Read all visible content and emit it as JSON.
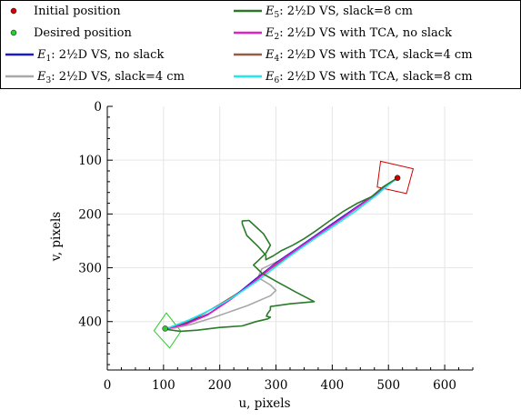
{
  "chart_data": {
    "type": "line",
    "xlabel": "u, pixels",
    "ylabel": "v, pixels",
    "xlim": [
      0,
      650
    ],
    "ylim": [
      0,
      490
    ],
    "y_inverted": true,
    "grid": true,
    "legend_placement": "top, above plot area",
    "xticks": [
      0,
      100,
      200,
      300,
      400,
      500,
      600
    ],
    "yticks": [
      0,
      100,
      200,
      300,
      400
    ],
    "legend": [
      {
        "label": "Initial position",
        "kind": "marker",
        "color": "#d40000"
      },
      {
        "label": "Desired position",
        "kind": "marker",
        "color": "#2ccc2c"
      },
      {
        "label": "E_1: 2½D VS, no slack",
        "sym": "E",
        "sub": "1",
        "rest": ": 2½D VS, no slack",
        "color": "#1a1acc"
      },
      {
        "label": "E_3: 2½D VS, slack=4 cm",
        "sym": "E",
        "sub": "3",
        "rest": ": 2½D VS, slack=4 cm",
        "color": "#a8a8a8"
      },
      {
        "label": "E_5: 2½D VS, slack=8 cm",
        "sym": "E",
        "sub": "5",
        "rest": ": 2½D VS, slack=8 cm",
        "color": "#2a7a2a"
      },
      {
        "label": "E_2: 2½D VS with TCA, no slack",
        "sym": "E",
        "sub": "2",
        "rest": ": 2½D VS with TCA, no slack",
        "color": "#e020c8"
      },
      {
        "label": "E_4: 2½D VS with TCA, slack=4 cm",
        "sym": "E",
        "sub": "4",
        "rest": ": 2½D VS with TCA, slack=4 cm",
        "color": "#9a5a4a"
      },
      {
        "label": "E_6: 2½D VS with TCA, slack=8 cm",
        "sym": "E",
        "sub": "6",
        "rest": ": 2½D VS with TCA, slack=8 cm",
        "color": "#20e8f0"
      }
    ],
    "points": {
      "initial": {
        "name": "Initial position",
        "x": 516,
        "y": 133,
        "color": "#d40000"
      },
      "desired": {
        "name": "Desired position",
        "x": 103,
        "y": 413,
        "color": "#2ccc2c"
      }
    },
    "polygons": [
      {
        "name": "Initial position outline",
        "color": "#d40000",
        "points": [
          [
            486,
            102
          ],
          [
            544,
            116
          ],
          [
            532,
            162
          ],
          [
            480,
            150
          ]
        ]
      },
      {
        "name": "Desired position outline",
        "color": "#2ccc2c",
        "points": [
          [
            83,
            417
          ],
          [
            105,
            384
          ],
          [
            131,
            418
          ],
          [
            111,
            449
          ]
        ]
      }
    ],
    "series": [
      {
        "name": "E_1",
        "color": "#1a1acc",
        "x": [
          516,
          470,
          420,
          380,
          340,
          300,
          260,
          220,
          180,
          140,
          110,
          103
        ],
        "y": [
          133,
          168,
          204,
          233,
          262,
          291,
          324,
          358,
          386,
          404,
          412,
          413
        ]
      },
      {
        "name": "E_2",
        "color": "#e020c8",
        "x": [
          516,
          468,
          420,
          378,
          338,
          298,
          258,
          218,
          178,
          140,
          110,
          103
        ],
        "y": [
          133,
          170,
          206,
          236,
          265,
          294,
          328,
          360,
          388,
          405,
          412,
          413
        ]
      },
      {
        "name": "E_3",
        "color": "#a8a8a8",
        "x": [
          516,
          470,
          420,
          370,
          320,
          295,
          275,
          268,
          290,
          300,
          290,
          250,
          190,
          150,
          120,
          103
        ],
        "y": [
          133,
          170,
          207,
          245,
          280,
          292,
          302,
          318,
          332,
          342,
          352,
          370,
          392,
          405,
          412,
          413
        ]
      },
      {
        "name": "E_4",
        "color": "#9a5a4a",
        "x": [
          516,
          470,
          420,
          370,
          320,
          290,
          270,
          260,
          240,
          200,
          160,
          130,
          110,
          103
        ],
        "y": [
          133,
          168,
          205,
          242,
          280,
          302,
          318,
          328,
          342,
          368,
          392,
          406,
          412,
          413
        ]
      },
      {
        "name": "E_5",
        "color": "#2a7a2a",
        "x": [
          516,
          490,
          470,
          445,
          420,
          395,
          370,
          350,
          330,
          310,
          295,
          282,
          282,
          268,
          248,
          240,
          240,
          252,
          278,
          290,
          282,
          270,
          260,
          275,
          300,
          335,
          368,
          325,
          290,
          290,
          285,
          283,
          290,
          285,
          265,
          240,
          200,
          160,
          130,
          108,
          103
        ],
        "y": [
          133,
          150,
          168,
          180,
          195,
          213,
          232,
          246,
          258,
          268,
          278,
          285,
          277,
          260,
          240,
          218,
          213,
          212,
          237,
          258,
          273,
          285,
          295,
          310,
          325,
          345,
          363,
          367,
          372,
          378,
          385,
          390,
          392,
          395,
          400,
          408,
          411,
          416,
          418,
          415,
          413
        ]
      },
      {
        "name": "E_6",
        "color": "#20e8f0",
        "x": [
          516,
          500,
          480,
          460,
          440,
          420,
          395,
          370,
          345,
          320,
          295,
          270,
          245,
          220,
          195,
          170,
          145,
          125,
          110,
          103
        ],
        "y": [
          133,
          146,
          164,
          180,
          196,
          210,
          228,
          245,
          263,
          282,
          302,
          322,
          340,
          357,
          372,
          385,
          397,
          405,
          411,
          413
        ]
      }
    ]
  }
}
